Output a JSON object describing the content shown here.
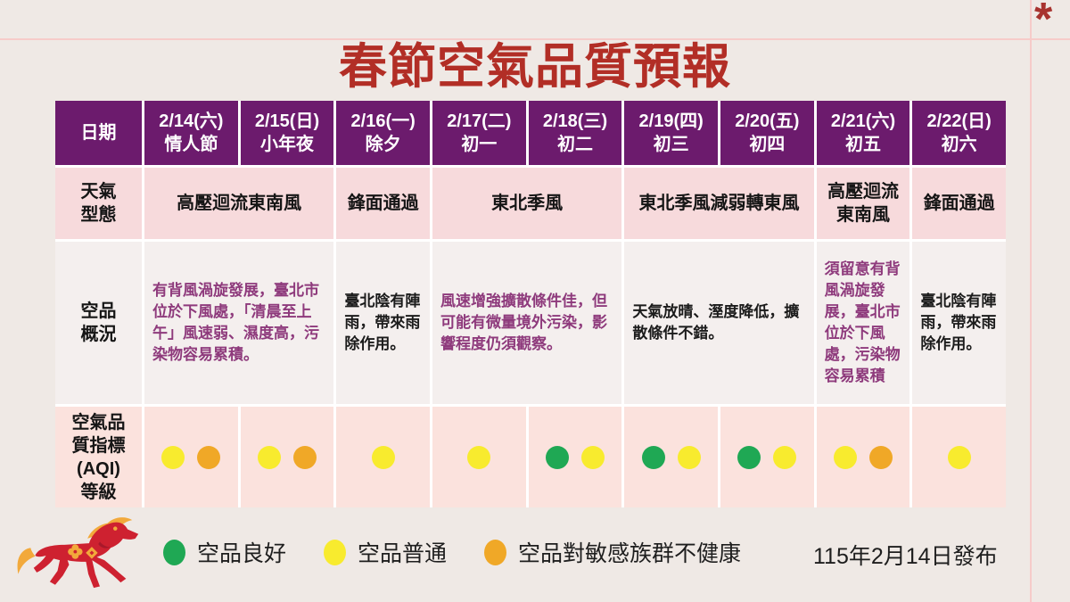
{
  "page": {
    "title": "春節空氣品質預報",
    "asterisk": "*",
    "publish_date": "115年2月14日發布"
  },
  "table": {
    "header": {
      "label": "日期",
      "columns": [
        {
          "date": "2/14(六)",
          "day": "情人節"
        },
        {
          "date": "2/15(日)",
          "day": "小年夜"
        },
        {
          "date": "2/16(一)",
          "day": "除夕"
        },
        {
          "date": "2/17(二)",
          "day": "初一"
        },
        {
          "date": "2/18(三)",
          "day": "初二"
        },
        {
          "date": "2/19(四)",
          "day": "初三"
        },
        {
          "date": "2/20(五)",
          "day": "初四"
        },
        {
          "date": "2/21(六)",
          "day": "初五"
        },
        {
          "date": "2/22(日)",
          "day": "初六"
        }
      ]
    },
    "weather_row": {
      "label": "天氣\n型態",
      "cells": [
        {
          "text": "高壓迴流東南風",
          "span": 2
        },
        {
          "text": "鋒面通過",
          "span": 1
        },
        {
          "text": "東北季風",
          "span": 2
        },
        {
          "text": "東北季風減弱轉東風",
          "span": 2
        },
        {
          "text": "高壓迴流東南風",
          "span": 1
        },
        {
          "text": "鋒面通過",
          "span": 1
        }
      ]
    },
    "overview_row": {
      "label": "空品\n概況",
      "cells": [
        {
          "text": "有背風渦旋發展，臺北市位於下風處，「清晨至上午」風速弱、濕度高，污染物容易累積。",
          "span": 2,
          "color": "purple"
        },
        {
          "text": "臺北陰有陣雨，帶來雨除作用。",
          "span": 1,
          "color": "black"
        },
        {
          "text": "風速增強擴散條件佳，但可能有微量境外污染，影響程度仍須觀察。",
          "span": 2,
          "color": "purple"
        },
        {
          "text": "天氣放晴、溼度降低，擴散條件不錯。",
          "span": 2,
          "color": "black"
        },
        {
          "text": "須留意有背風渦旋發展，臺北市位於下風處，污染物容易累積",
          "span": 1,
          "color": "purple"
        },
        {
          "text": "臺北陰有陣雨，帶來雨除作用。",
          "span": 1,
          "color": "black"
        }
      ]
    },
    "aqi_row": {
      "label": "空氣品\n質指標\n(AQI)\n等級",
      "cells": [
        {
          "dots": [
            "yellow",
            "orange"
          ]
        },
        {
          "dots": [
            "yellow",
            "orange"
          ]
        },
        {
          "dots": [
            "yellow"
          ]
        },
        {
          "dots": [
            "yellow"
          ]
        },
        {
          "dots": [
            "green",
            "yellow"
          ]
        },
        {
          "dots": [
            "green",
            "yellow"
          ]
        },
        {
          "dots": [
            "green",
            "yellow"
          ]
        },
        {
          "dots": [
            "yellow",
            "orange"
          ]
        },
        {
          "dots": [
            "yellow"
          ]
        }
      ]
    }
  },
  "legend": {
    "items": [
      {
        "color": "green",
        "label": "空品良好"
      },
      {
        "color": "yellow",
        "label": "空品普通"
      },
      {
        "color": "orange",
        "label": "空品對敏感族群不健康"
      }
    ]
  },
  "colors": {
    "green": "#1FA854",
    "yellow": "#F8EB2E",
    "orange": "#F0A827",
    "header_purple": "#6C1B6D",
    "weather_row_pink": "#F7DADC",
    "overview_row_bg": "#F4EFEE",
    "aqi_row_pink": "#FBE2DD",
    "title_red": "#B22E26",
    "purple_text": "#8E3A7C",
    "horse_red": "#CE2130",
    "horse_mane_orange": "#F2A93B"
  }
}
